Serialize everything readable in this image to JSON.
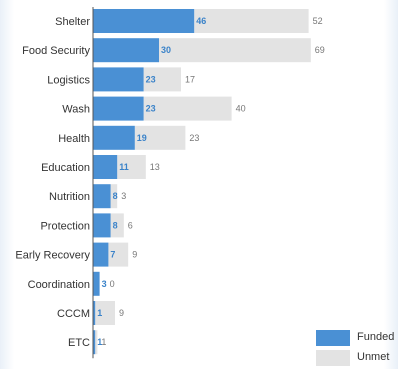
{
  "chart_data": {
    "type": "bar",
    "orientation": "horizontal",
    "stacked": true,
    "categories": [
      "Shelter",
      "Food Security",
      "Logistics",
      "Wash",
      "Health",
      "Education",
      "Nutrition",
      "Protection",
      "Early Recovery",
      "Coordination",
      "CCCM",
      "ETC"
    ],
    "series": [
      {
        "name": "Funded",
        "values": [
          46,
          30,
          23,
          23,
          19,
          11,
          8,
          8,
          7,
          3,
          1,
          1
        ],
        "color": "#4a90d4"
      },
      {
        "name": "Unmet",
        "values": [
          52,
          69,
          17,
          40,
          23,
          13,
          3,
          6,
          9,
          0,
          9,
          1
        ],
        "color": "#e3e3e3"
      }
    ],
    "legend_position": "bottom-right",
    "grid": false,
    "xlim": [
      0,
      100
    ]
  }
}
